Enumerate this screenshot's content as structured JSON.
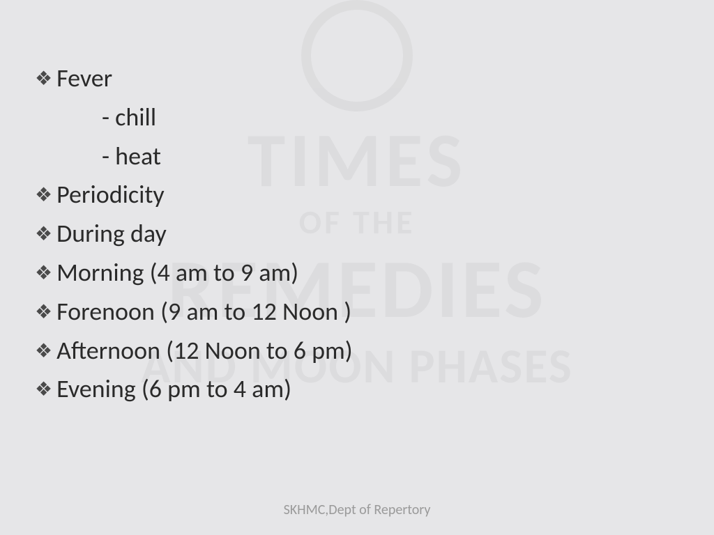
{
  "slide": {
    "background_color": "#e6e6e8",
    "text_color": "#2a2a2a",
    "bullet_color": "#4a4a4a",
    "footer_color": "#9a9a9a",
    "bullet_glyph": "❖",
    "body_fontsize": 36,
    "footer_fontsize": 20,
    "items": [
      {
        "text": "Fever",
        "sub": [
          "- chill",
          "- heat"
        ]
      },
      {
        "text": "Periodicity"
      },
      {
        "text": "During day"
      },
      {
        "text": "Morning (4 am to 9 am)"
      },
      {
        "text": "Forenoon (9 am to 12 Noon )"
      },
      {
        "text": "Afternoon (12 Noon to 6 pm)"
      },
      {
        "text": "Evening (6 pm to 4 am)"
      }
    ],
    "footer": "SKHMC,Dept of Repertory"
  },
  "watermark": {
    "line1": "TIMES",
    "line2": "OF THE",
    "line3": "REMEDIES",
    "line4": "AND MOON PHASES",
    "opacity": 0.04
  }
}
